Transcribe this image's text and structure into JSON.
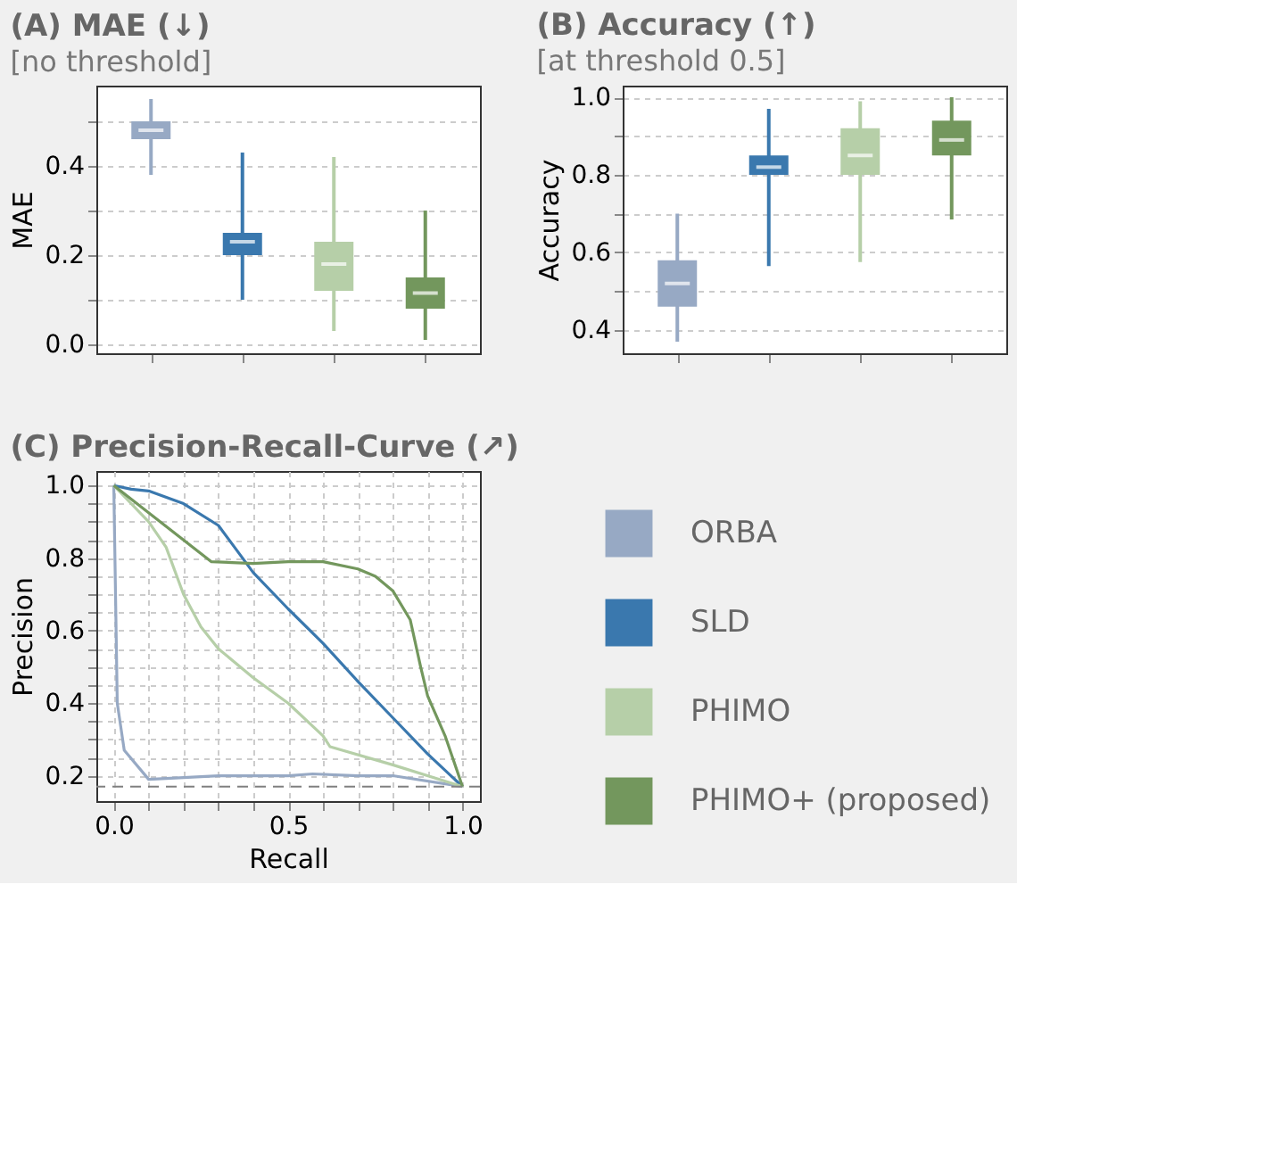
{
  "chart_data": [
    {
      "type": "box",
      "title": "(A)  MAE (↓)",
      "subtitle": "[no threshold]",
      "ylabel": "MAE",
      "categories": [
        null,
        null,
        null,
        null
      ],
      "colors": [
        "#97a9c4",
        "#3a78ae",
        "#b6cfa8",
        "#73975d"
      ],
      "boxes": [
        {
          "low": 0.38,
          "q1": 0.46,
          "median": 0.48,
          "q3": 0.5,
          "high": 0.55
        },
        {
          "low": 0.1,
          "q1": 0.2,
          "median": 0.23,
          "q3": 0.25,
          "high": 0.43
        },
        {
          "low": 0.03,
          "q1": 0.12,
          "median": 0.18,
          "q3": 0.23,
          "high": 0.42
        },
        {
          "low": 0.01,
          "q1": 0.08,
          "median": 0.115,
          "q3": 0.15,
          "high": 0.3
        }
      ],
      "ylim": [
        -0.02,
        0.58
      ],
      "yticks": [
        {
          "value": 0,
          "label": "0.0"
        },
        {
          "value": 0.1,
          "label": null
        },
        0.2,
        {
          "value": 0.3,
          "label": null
        },
        0.4,
        {
          "value": 0.5,
          "label": null
        }
      ],
      "grid": "y"
    },
    {
      "type": "box",
      "title": "(B)  Accuracy (↑)",
      "subtitle": "[at threshold 0.5]",
      "ylabel": "Accuracy",
      "categories": [
        null,
        null,
        null,
        null
      ],
      "colors": [
        "#97a9c4",
        "#3a78ae",
        "#b6cfa8",
        "#73975d"
      ],
      "boxes": [
        {
          "low": 0.37,
          "q1": 0.46,
          "median": 0.52,
          "q3": 0.58,
          "high": 0.7
        },
        {
          "low": 0.565,
          "q1": 0.8,
          "median": 0.82,
          "q3": 0.85,
          "high": 0.97
        },
        {
          "low": 0.575,
          "q1": 0.8,
          "median": 0.85,
          "q3": 0.92,
          "high": 0.99
        },
        {
          "low": 0.685,
          "q1": 0.85,
          "median": 0.89,
          "q3": 0.94,
          "high": 1.0
        }
      ],
      "ylim": [
        0.34,
        1.03
      ],
      "yticks": [
        0.4,
        {
          "value": 0.5,
          "label": null
        },
        0.6,
        {
          "value": 0.7,
          "label": null
        },
        0.8,
        {
          "value": 0.9,
          "label": null
        },
        {
          "value": 1.0,
          "label": "1.0"
        }
      ],
      "grid": "y"
    },
    {
      "type": "line",
      "title": "(C)  Precision-Recall-Curve (↗)",
      "xlabel": "Recall",
      "ylabel": "Precision",
      "legend": "right",
      "grid": true,
      "series": [
        {
          "name": "ORBA",
          "color": "#97a9c4",
          "x": [
            0,
            0.01,
            0.03,
            0.1,
            0.3,
            0.5,
            0.57,
            0.7,
            0.8,
            1.0
          ],
          "values": [
            1.0,
            0.4,
            0.27,
            0.19,
            0.2,
            0.2,
            0.205,
            0.2,
            0.2,
            0.17
          ]
        },
        {
          "name": "SLD",
          "color": "#3a78ae",
          "x": [
            0,
            0.05,
            0.1,
            0.2,
            0.3,
            0.4,
            0.5,
            0.6,
            0.7,
            0.8,
            0.9,
            1.0
          ],
          "values": [
            1.0,
            0.99,
            0.985,
            0.95,
            0.89,
            0.76,
            0.66,
            0.565,
            0.46,
            0.36,
            0.26,
            0.17
          ]
        },
        {
          "name": "PHIMO",
          "color": "#b6cfa8",
          "x": [
            0,
            0.1,
            0.15,
            0.2,
            0.25,
            0.3,
            0.4,
            0.5,
            0.6,
            0.62,
            0.8,
            1.0
          ],
          "values": [
            1.0,
            0.9,
            0.83,
            0.7,
            0.61,
            0.55,
            0.47,
            0.4,
            0.31,
            0.28,
            0.23,
            0.17
          ]
        },
        {
          "name": "PHIMO+ (proposed)",
          "color": "#73975d",
          "x": [
            0,
            0.28,
            0.4,
            0.5,
            0.6,
            0.7,
            0.75,
            0.8,
            0.85,
            0.88,
            0.9,
            0.95,
            1.0
          ],
          "values": [
            1.0,
            0.79,
            0.785,
            0.79,
            0.79,
            0.77,
            0.75,
            0.71,
            0.63,
            0.5,
            0.42,
            0.31,
            0.17
          ]
        }
      ],
      "ref_lines": [
        {
          "axis": "y",
          "value": 0.17,
          "color": "#808080",
          "line_style": "dashed"
        }
      ],
      "xlim": [
        -0.05,
        1.05
      ],
      "xticks": [
        {
          "value": 0,
          "label": "0.0"
        },
        {
          "value": 0.1,
          "label": null
        },
        {
          "value": 0.2,
          "label": null
        },
        {
          "value": 0.3,
          "label": null
        },
        {
          "value": 0.4,
          "label": null
        },
        0.5,
        {
          "value": 0.6,
          "label": null
        },
        {
          "value": 0.7,
          "label": null
        },
        {
          "value": 0.8,
          "label": null
        },
        {
          "value": 0.9,
          "label": null
        },
        {
          "value": 1.0,
          "label": "1.0"
        }
      ],
      "ylim": [
        0.13,
        1.04
      ],
      "yticks": [
        0.2,
        {
          "value": 0.25,
          "label": null
        },
        {
          "value": 0.3,
          "label": null
        },
        {
          "value": 0.35,
          "label": null
        },
        0.4,
        {
          "value": 0.45,
          "label": null
        },
        {
          "value": 0.5,
          "label": null
        },
        {
          "value": 0.55,
          "label": null
        },
        0.6,
        {
          "value": 0.65,
          "label": null
        },
        {
          "value": 0.7,
          "label": null
        },
        {
          "value": 0.75,
          "label": null
        },
        0.8,
        {
          "value": 0.85,
          "label": null
        },
        {
          "value": 0.9,
          "label": null
        },
        {
          "value": 0.95,
          "label": null
        },
        {
          "value": 1.0,
          "label": "1.0"
        }
      ]
    }
  ]
}
